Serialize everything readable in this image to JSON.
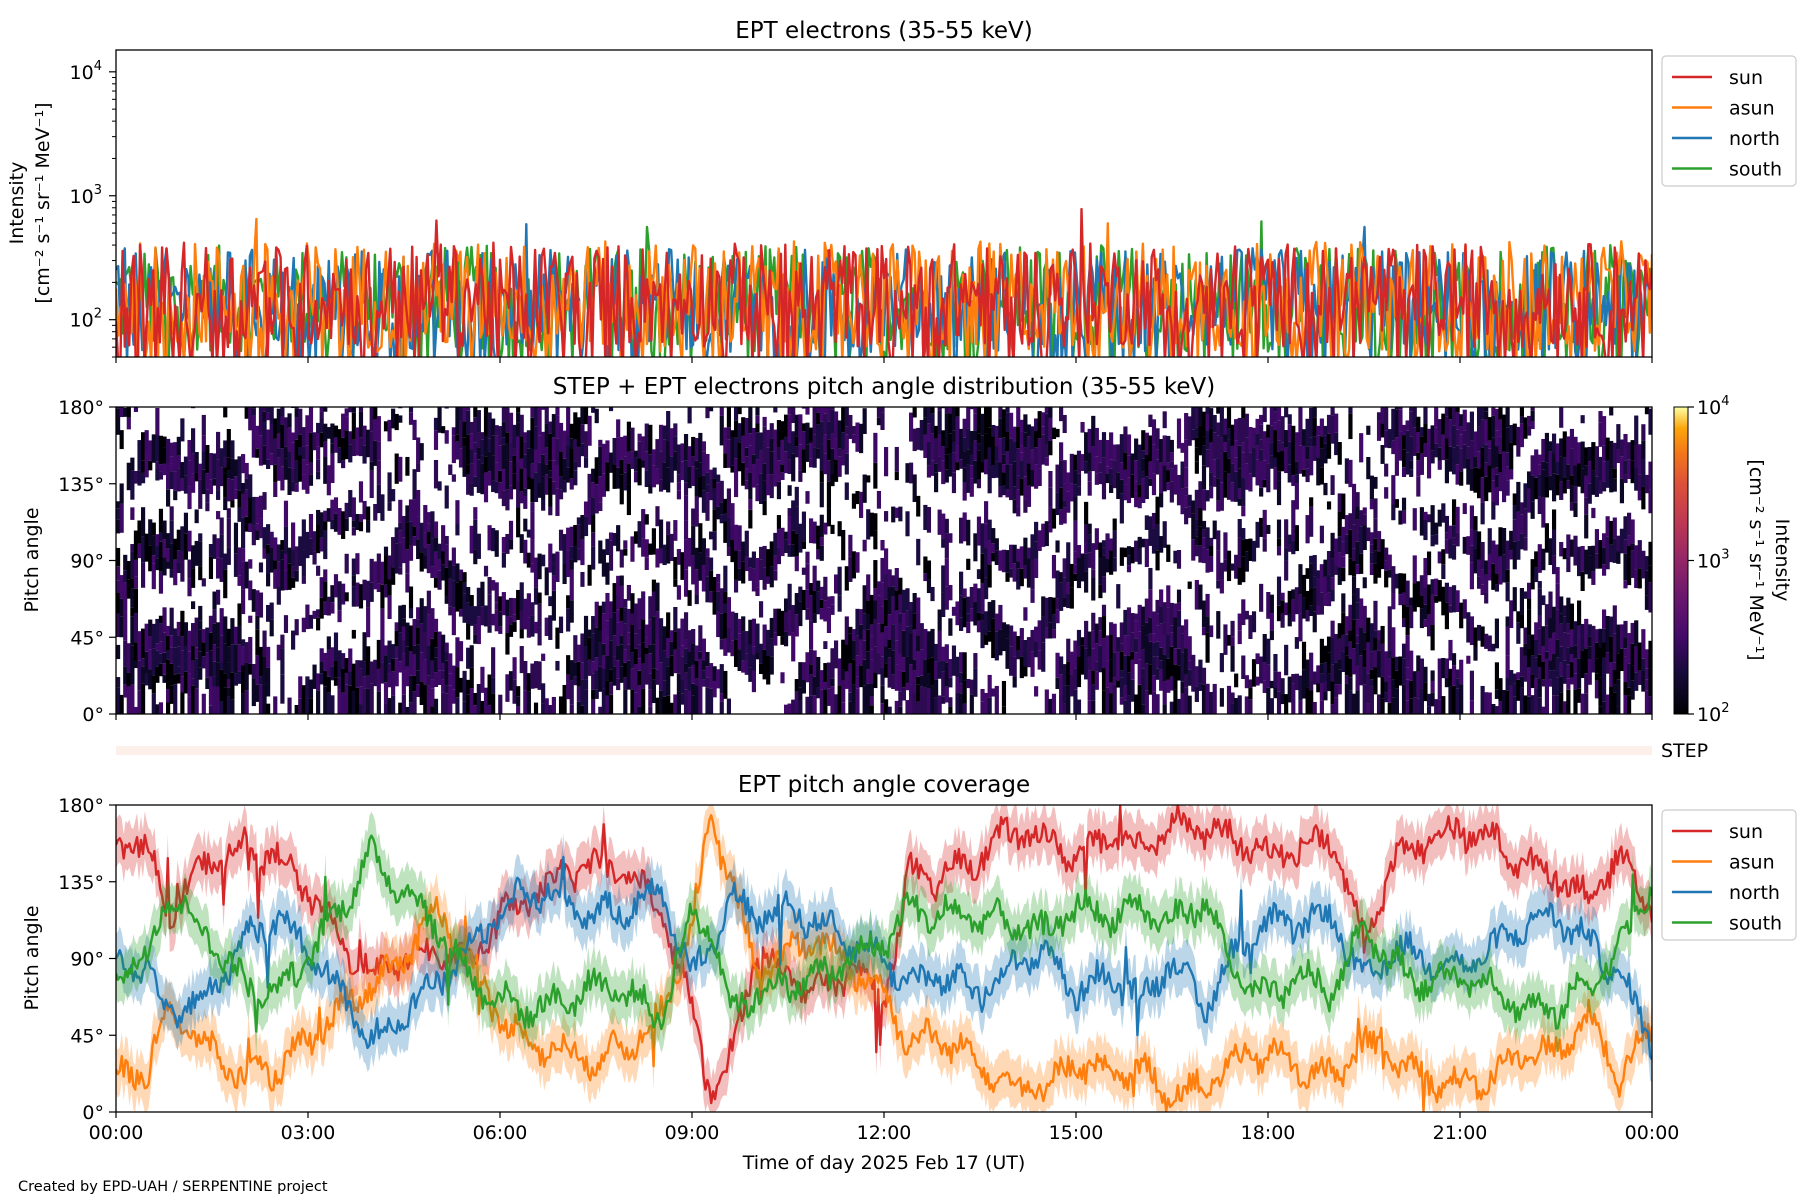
{
  "credit": "Created by EPD-UAH / SERPENTINE project",
  "x_axis": {
    "label": "Time of day 2025 Feb 17 (UT)",
    "ticks": [
      "00:00",
      "03:00",
      "06:00",
      "09:00",
      "12:00",
      "15:00",
      "18:00",
      "21:00",
      "00:00"
    ]
  },
  "colors": {
    "sun": "#d62728",
    "asun": "#ff7f0e",
    "north": "#1f77b4",
    "south": "#2ca02c"
  },
  "chart_data": [
    {
      "type": "line",
      "title": "EPT electrons (35-55 keV)",
      "ylabel_line1": "Intensity",
      "ylabel_line2": "[cm⁻² s⁻¹ sr⁻¹ MeV⁻¹]",
      "yscale": "log",
      "ylim": [
        50,
        15000
      ],
      "yticks": [
        {
          "value": 100,
          "base": "10",
          "exp": "2"
        },
        {
          "value": 1000,
          "base": "10",
          "exp": "3"
        },
        {
          "value": 10000,
          "base": "10",
          "exp": "4"
        }
      ],
      "xlim_hours": [
        0,
        24
      ],
      "legend": "outside-top-right",
      "series": [
        {
          "name": "sun",
          "color": "#d62728",
          "typical": [
            60,
            420
          ],
          "spikes": [
            [
              15.1,
              780
            ],
            [
              5.0,
              630
            ]
          ]
        },
        {
          "name": "asun",
          "color": "#ff7f0e",
          "typical": [
            55,
            430
          ],
          "spikes": [
            [
              2.2,
              650
            ],
            [
              15.5,
              600
            ]
          ]
        },
        {
          "name": "north",
          "color": "#1f77b4",
          "typical": [
            55,
            380
          ],
          "spikes": [
            [
              6.4,
              590
            ],
            [
              19.5,
              560
            ]
          ]
        },
        {
          "name": "south",
          "color": "#2ca02c",
          "typical": [
            55,
            400
          ],
          "spikes": [
            [
              17.9,
              620
            ],
            [
              8.3,
              560
            ]
          ]
        }
      ]
    },
    {
      "type": "heatmap",
      "title": "STEP + EPT electrons pitch angle distribution (35-55 keV)",
      "ylabel": "Pitch angle",
      "yticks": [
        "0°",
        "45°",
        "90°",
        "135°",
        "180°"
      ],
      "ylim": [
        0,
        180
      ],
      "xlim_hours": [
        0,
        24
      ],
      "colorbar": {
        "label_line1": "Intensity",
        "label_line2": "[cm⁻² s⁻¹ sr⁻¹ MeV⁻¹]",
        "scale": "log",
        "range": [
          100,
          10000
        ],
        "ticks": [
          {
            "value": 100,
            "base": "10",
            "exp": "2"
          },
          {
            "value": 1000,
            "base": "10",
            "exp": "3"
          },
          {
            "value": 10000,
            "base": "10",
            "exp": "4"
          }
        ],
        "colormap": "inferno"
      },
      "typical_intensity": [
        100,
        400
      ],
      "empty_color": "#ffffff"
    },
    {
      "type": "heatmap",
      "label": "STEP",
      "note": "thin strip, no visible data",
      "fill_color": "#fdf0ea"
    },
    {
      "type": "line",
      "title": "EPT pitch angle coverage",
      "ylabel": "Pitch angle",
      "yticks": [
        "0°",
        "45°",
        "90°",
        "135°",
        "180°"
      ],
      "ylim": [
        0,
        180
      ],
      "xlim_hours": [
        0,
        24
      ],
      "legend": "outside-top-right",
      "band": "shaded ± spread around each series",
      "series": [
        {
          "name": "sun",
          "color": "#d62728",
          "x": [
            0,
            0.5,
            0.8,
            1.5,
            2.0,
            2.5,
            3.0,
            3.5,
            4.0,
            4.5,
            5.0,
            5.5,
            6.0,
            6.5,
            7.0,
            7.5,
            8.0,
            8.5,
            9.0,
            9.3,
            9.6,
            10.0,
            10.5,
            11.0,
            11.5,
            12.0,
            12.4,
            12.8,
            13.5,
            14.0,
            14.5,
            15.0,
            15.5,
            16.0,
            16.5,
            17.0,
            17.5,
            18.0,
            18.5,
            19.0,
            19.5,
            20.0,
            20.5,
            21.0,
            21.5,
            22.0,
            22.5,
            23.0,
            23.5,
            24.0
          ],
          "y": [
            160,
            155,
            115,
            150,
            155,
            150,
            130,
            100,
            80,
            90,
            95,
            85,
            115,
            125,
            140,
            145,
            140,
            120,
            60,
            10,
            30,
            95,
            80,
            70,
            85,
            65,
            140,
            135,
            150,
            165,
            160,
            150,
            160,
            155,
            170,
            165,
            160,
            150,
            155,
            160,
            100,
            150,
            160,
            165,
            160,
            145,
            140,
            125,
            150,
            120
          ]
        },
        {
          "name": "asun",
          "color": "#ff7f0e",
          "x": [
            0,
            0.5,
            0.8,
            1.5,
            2.0,
            2.5,
            3.0,
            3.5,
            4.0,
            4.5,
            5.0,
            5.5,
            6.0,
            6.5,
            7.0,
            7.5,
            8.0,
            8.5,
            9.0,
            9.3,
            9.6,
            10.0,
            10.5,
            11.0,
            11.5,
            12.0,
            12.4,
            12.8,
            13.5,
            14.0,
            14.5,
            15.0,
            15.5,
            16.0,
            16.5,
            17.0,
            17.5,
            18.0,
            18.5,
            19.0,
            19.5,
            20.0,
            20.5,
            21.0,
            21.5,
            22.0,
            22.5,
            23.0,
            23.5,
            24.0
          ],
          "y": [
            20,
            25,
            60,
            35,
            20,
            25,
            40,
            60,
            75,
            90,
            120,
            90,
            55,
            40,
            35,
            30,
            40,
            55,
            110,
            170,
            140,
            80,
            95,
            100,
            85,
            70,
            40,
            45,
            30,
            15,
            15,
            30,
            20,
            25,
            10,
            15,
            30,
            35,
            25,
            20,
            40,
            30,
            20,
            15,
            20,
            35,
            35,
            55,
            20,
            50
          ]
        },
        {
          "name": "north",
          "color": "#1f77b4",
          "x": [
            0,
            0.5,
            0.8,
            1.5,
            2.0,
            2.5,
            3.0,
            3.5,
            4.0,
            4.5,
            5.0,
            5.5,
            6.0,
            6.5,
            7.0,
            7.5,
            8.0,
            8.5,
            9.0,
            9.3,
            9.6,
            10.0,
            10.5,
            11.0,
            11.5,
            12.0,
            12.4,
            12.8,
            13.5,
            14.0,
            14.5,
            15.0,
            15.5,
            16.0,
            16.5,
            17.0,
            17.5,
            18.0,
            18.5,
            19.0,
            19.5,
            20.0,
            20.5,
            21.0,
            21.5,
            22.0,
            22.5,
            23.0,
            23.5,
            24.0
          ],
          "y": [
            90,
            85,
            55,
            70,
            100,
            115,
            95,
            70,
            40,
            60,
            75,
            95,
            120,
            130,
            125,
            115,
            120,
            130,
            80,
            100,
            125,
            115,
            120,
            110,
            100,
            90,
            75,
            80,
            70,
            85,
            95,
            70,
            80,
            65,
            90,
            60,
            95,
            110,
            110,
            115,
            75,
            95,
            90,
            85,
            95,
            110,
            115,
            100,
            80,
            40
          ]
        },
        {
          "name": "south",
          "color": "#2ca02c",
          "x": [
            0,
            0.5,
            0.8,
            1.5,
            2.0,
            2.5,
            3.0,
            3.5,
            4.0,
            4.5,
            5.0,
            5.5,
            6.0,
            6.5,
            7.0,
            7.5,
            8.0,
            8.5,
            9.0,
            9.3,
            9.6,
            10.0,
            10.5,
            11.0,
            11.5,
            12.0,
            12.4,
            12.8,
            13.5,
            14.0,
            14.5,
            15.0,
            15.5,
            16.0,
            16.5,
            17.0,
            17.5,
            18.0,
            18.5,
            19.0,
            19.5,
            20.0,
            20.5,
            21.0,
            21.5,
            22.0,
            22.5,
            23.0,
            23.5,
            24.0
          ],
          "y": [
            85,
            90,
            130,
            100,
            75,
            70,
            90,
            120,
            150,
            130,
            110,
            80,
            65,
            60,
            65,
            75,
            70,
            55,
            115,
            110,
            60,
            70,
            75,
            80,
            90,
            100,
            120,
            115,
            115,
            110,
            105,
            120,
            115,
            120,
            110,
            125,
            80,
            65,
            80,
            70,
            110,
            85,
            75,
            80,
            75,
            60,
            60,
            75,
            95,
            135
          ]
        }
      ]
    }
  ]
}
